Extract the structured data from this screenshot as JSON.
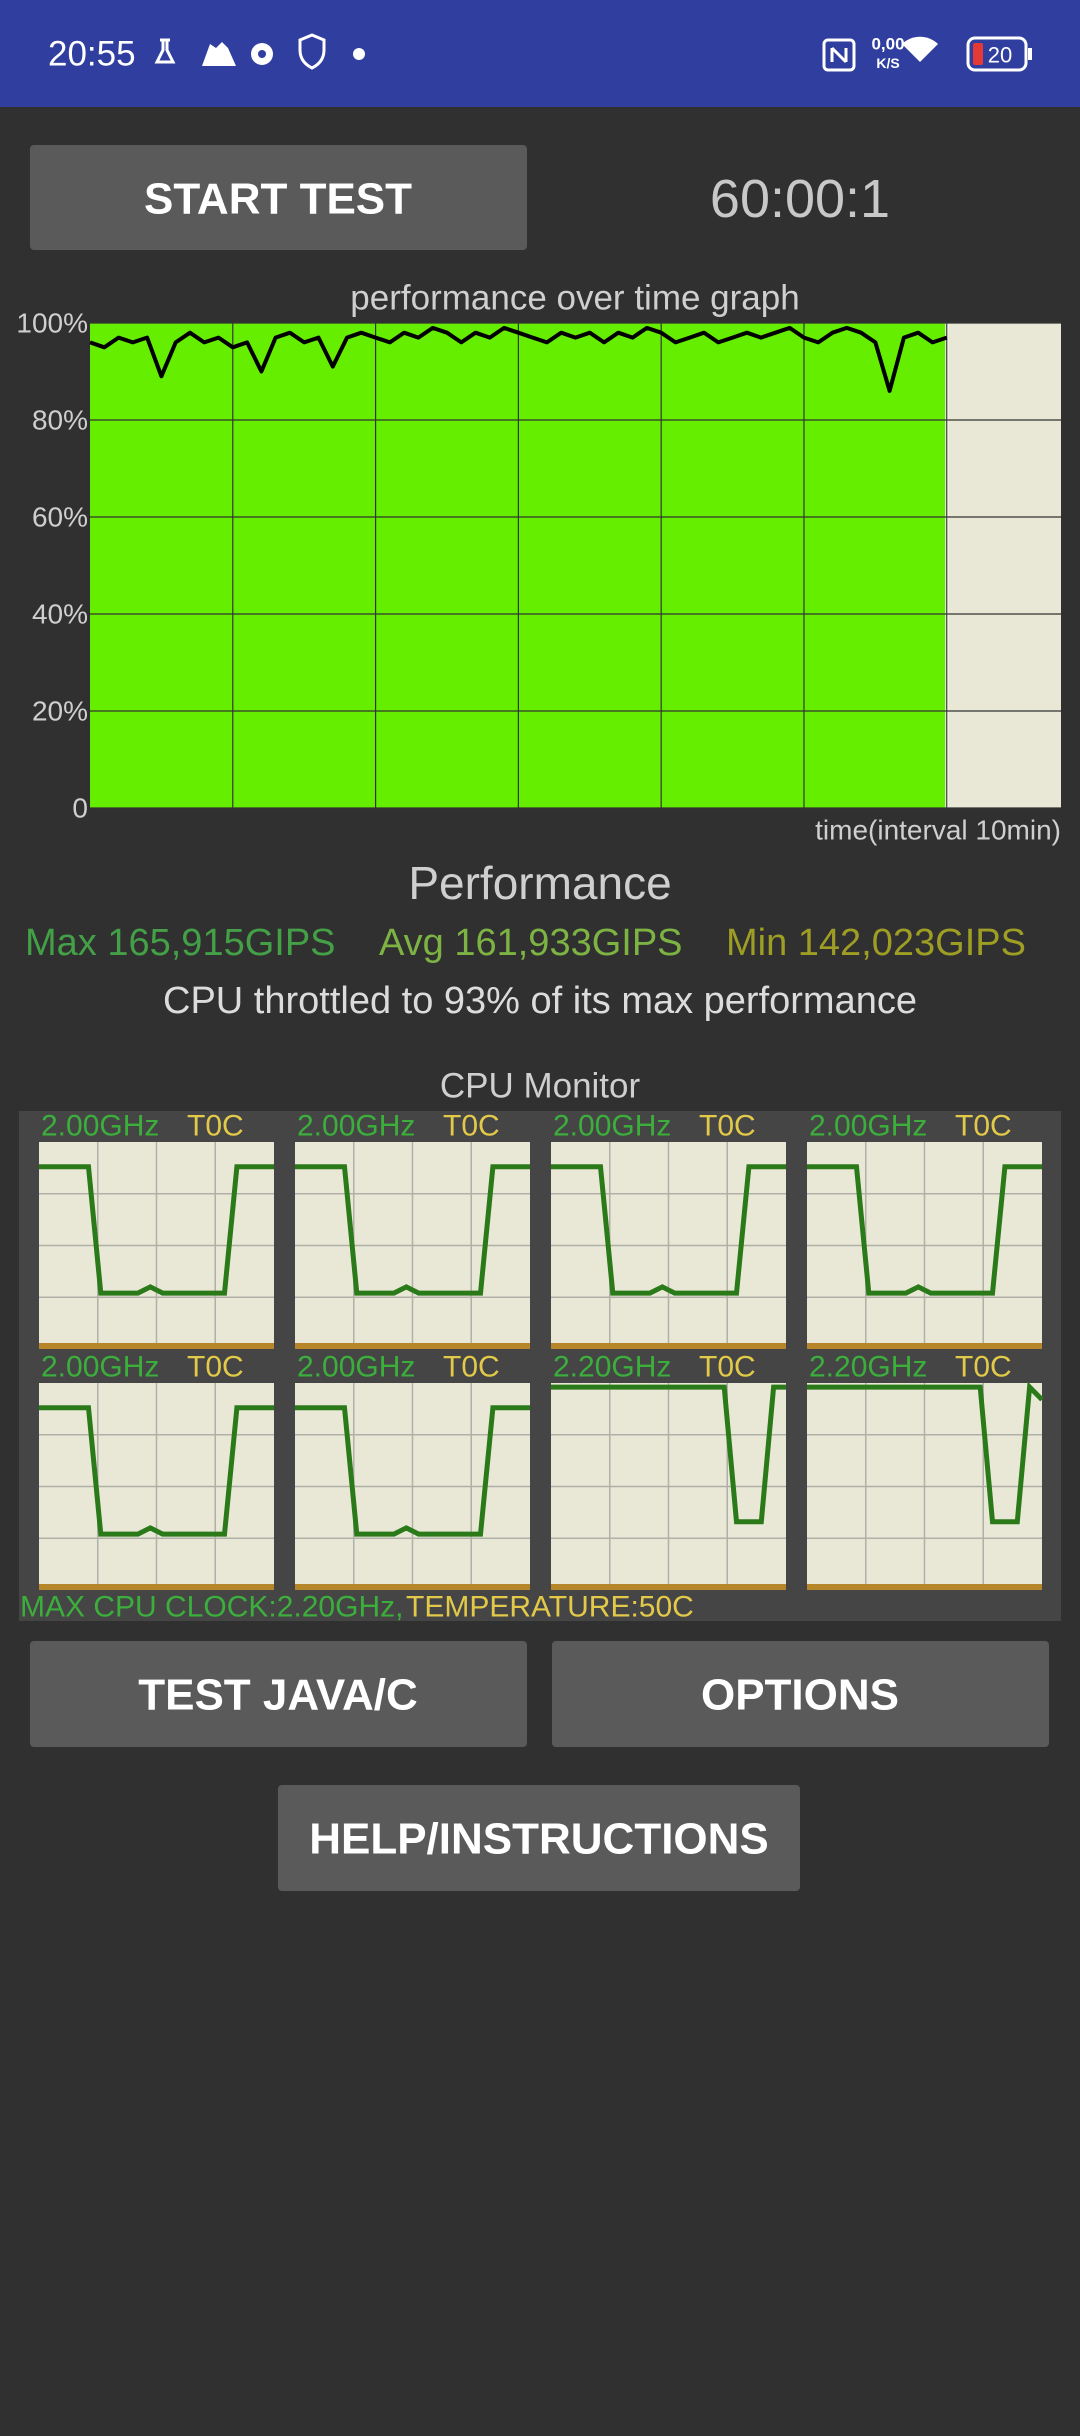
{
  "status_bar": {
    "time": "20:55",
    "net_speed_value": "0,00",
    "net_speed_unit": "K/S",
    "battery": "20"
  },
  "start_button": "START TEST",
  "timer": "60:00:1",
  "performance_graph": {
    "type": "line",
    "title": "performance over time graph",
    "x_label": "time(interval 10min)",
    "x": [
      0,
      1,
      2,
      3,
      4,
      5,
      6,
      7,
      8,
      9,
      10,
      11,
      12,
      13,
      14,
      15,
      16,
      17,
      18,
      19,
      20,
      21,
      22,
      23,
      24,
      25,
      26,
      27,
      28,
      29,
      30,
      31,
      32,
      33,
      34,
      35,
      36,
      37,
      38,
      39,
      40,
      41,
      42,
      43,
      44,
      45,
      46,
      47,
      48,
      49,
      50,
      51,
      52,
      53,
      54,
      55,
      56,
      57,
      58,
      59,
      60
    ],
    "values": [
      96,
      95,
      97,
      96,
      97,
      89,
      96,
      98,
      96,
      97,
      95,
      96,
      90,
      97,
      98,
      96,
      97,
      91,
      97,
      98,
      97,
      96,
      98,
      97,
      99,
      98,
      96,
      98,
      97,
      99,
      98,
      97,
      96,
      98,
      97,
      98,
      96,
      98,
      97,
      99,
      98,
      96,
      97,
      98,
      96,
      97,
      98,
      97,
      98,
      99,
      97,
      96,
      98,
      99,
      98,
      96,
      86,
      97,
      98,
      96,
      97
    ],
    "xlim": [
      0,
      68
    ],
    "xticks": [
      10,
      20,
      30,
      40,
      50,
      60
    ],
    "ylim": [
      0,
      100
    ],
    "yticks": [
      {
        "value": 0,
        "label": "0"
      },
      {
        "value": 20,
        "label": "20%"
      },
      {
        "value": 40,
        "label": "40%"
      },
      {
        "value": 60,
        "label": "60%"
      },
      {
        "value": 80,
        "label": "80%"
      },
      {
        "value": 100,
        "label": "100%"
      }
    ],
    "color": "#000000",
    "fill": "#66ee00",
    "background": "#e9e7d6",
    "grid": true
  },
  "performance": {
    "heading": "Performance",
    "max": "Max 165,915GIPS",
    "avg": "Avg 161,933GIPS",
    "min": "Min 142,023GIPS",
    "throttle": "CPU throttled to 93% of its max performance"
  },
  "cpu_monitor": {
    "title": "CPU Monitor",
    "ylim": [
      0,
      100
    ],
    "color": "#2a7a1a",
    "cores": [
      {
        "frequency": "2.00GHz",
        "temperature": "T0C",
        "values": [
          88,
          88,
          88,
          88,
          88,
          27,
          27,
          27,
          27,
          30,
          27,
          27,
          27,
          27,
          27,
          27,
          88,
          88,
          88,
          88
        ]
      },
      {
        "frequency": "2.00GHz",
        "temperature": "T0C",
        "values": [
          88,
          88,
          88,
          88,
          88,
          27,
          27,
          27,
          27,
          30,
          27,
          27,
          27,
          27,
          27,
          27,
          88,
          88,
          88,
          88
        ]
      },
      {
        "frequency": "2.00GHz",
        "temperature": "T0C",
        "values": [
          88,
          88,
          88,
          88,
          88,
          27,
          27,
          27,
          27,
          30,
          27,
          27,
          27,
          27,
          27,
          27,
          88,
          88,
          88,
          88
        ]
      },
      {
        "frequency": "2.00GHz",
        "temperature": "T0C",
        "values": [
          88,
          88,
          88,
          88,
          88,
          27,
          27,
          27,
          27,
          30,
          27,
          27,
          27,
          27,
          27,
          27,
          88,
          88,
          88,
          88
        ]
      },
      {
        "frequency": "2.00GHz",
        "temperature": "T0C",
        "values": [
          88,
          88,
          88,
          88,
          88,
          27,
          27,
          27,
          27,
          30,
          27,
          27,
          27,
          27,
          27,
          27,
          88,
          88,
          88,
          88
        ]
      },
      {
        "frequency": "2.00GHz",
        "temperature": "T0C",
        "values": [
          88,
          88,
          88,
          88,
          88,
          27,
          27,
          27,
          27,
          30,
          27,
          27,
          27,
          27,
          27,
          27,
          88,
          88,
          88,
          88
        ]
      },
      {
        "frequency": "2.20GHz",
        "temperature": "T0C",
        "values": [
          98,
          98,
          98,
          98,
          98,
          98,
          98,
          98,
          98,
          98,
          98,
          98,
          98,
          98,
          98,
          33,
          33,
          33,
          98,
          98
        ]
      },
      {
        "frequency": "2.20GHz",
        "temperature": "T0C",
        "values": [
          98,
          98,
          98,
          98,
          98,
          98,
          98,
          98,
          98,
          98,
          98,
          98,
          98,
          98,
          98,
          33,
          33,
          33,
          98,
          92
        ]
      }
    ],
    "max_clock": "MAX CPU CLOCK:2.20GHz,",
    "temperature": "TEMPERATURE:50C"
  },
  "buttons": [
    "TEST JAVA/C",
    "OPTIONS",
    "HELP/INSTRUCTIONS"
  ]
}
